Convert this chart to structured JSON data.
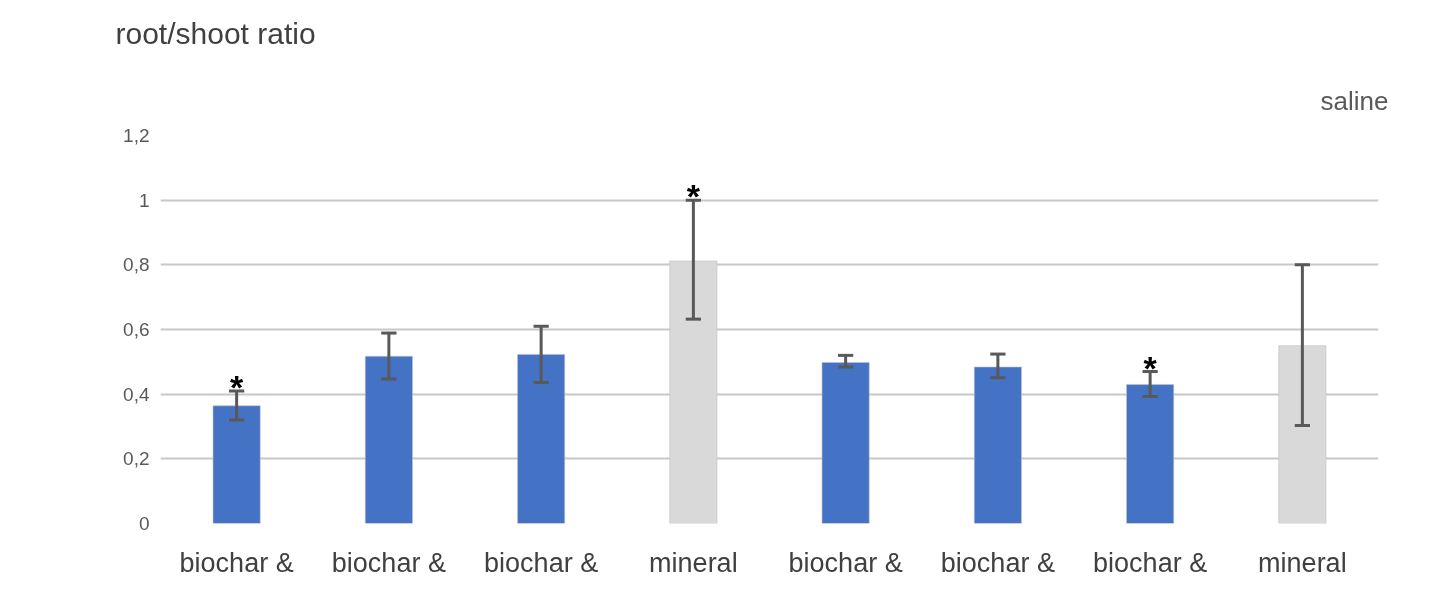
{
  "chart_data": {
    "type": "bar",
    "title": "root/shoot ratio",
    "categories": [
      "biochar &",
      "biochar &",
      "biochar &",
      "mineral",
      "biochar &",
      "biochar &",
      "biochar &",
      "mineral"
    ],
    "values": [
      0.364,
      0.517,
      0.523,
      0.812,
      0.498,
      0.484,
      0.43,
      0.55
    ],
    "colors": [
      "#4472c4",
      "#4472c4",
      "#4472c4",
      "#d9d9d9",
      "#4472c4",
      "#4472c4",
      "#4472c4",
      "#d9d9d9"
    ],
    "errors": [
      [
        0.32,
        0.41
      ],
      [
        0.447,
        0.589
      ],
      [
        0.436,
        0.61
      ],
      [
        0.632,
        1.0
      ],
      [
        0.484,
        0.52
      ],
      [
        0.451,
        0.524
      ],
      [
        0.393,
        0.47
      ],
      [
        0.303,
        0.8
      ]
    ],
    "ylim": [
      0,
      1.2
    ],
    "yticks": [
      0,
      {
        "value": 0.2,
        "label": "0,2"
      },
      {
        "value": 0.4,
        "label": "0,4"
      },
      {
        "value": 0.6,
        "label": "0,6"
      },
      {
        "value": 0.8,
        "label": "0,8"
      },
      1,
      {
        "value": 1.2,
        "label": "1,2"
      }
    ],
    "value_labels": [
      "*",
      null,
      null,
      "*",
      null,
      null,
      "*",
      null
    ],
    "grid": "y",
    "annotations": [
      "saline"
    ]
  }
}
